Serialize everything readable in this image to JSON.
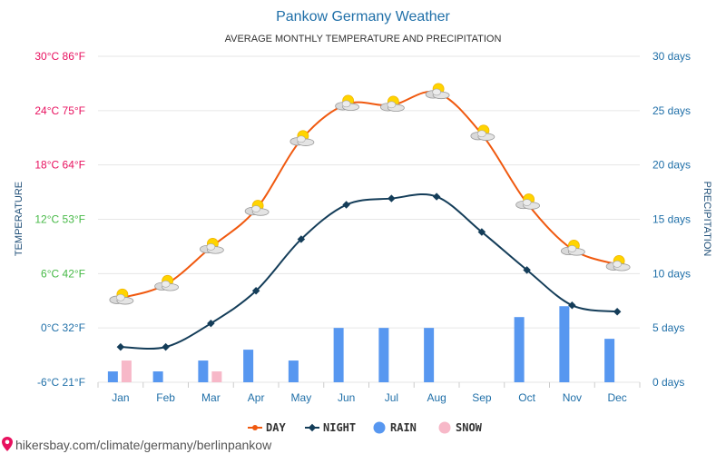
{
  "chart_data": {
    "type": "line",
    "title": "Pankow Germany Weather",
    "subtitle": "AVERAGE MONTHLY TEMPERATURE AND PRECIPITATION",
    "ylabel_left": "TEMPERATURE",
    "ylabel_right": "PRECIPITATION",
    "categories": [
      "Jan",
      "Feb",
      "Mar",
      "Apr",
      "May",
      "Jun",
      "Jul",
      "Aug",
      "Sep",
      "Oct",
      "Nov",
      "Dec"
    ],
    "left_axis": {
      "ylim": [
        -6,
        30
      ],
      "ticks": [
        {
          "value": 30,
          "label": "30°C 86°F",
          "color": "#e8115f"
        },
        {
          "value": 24,
          "label": "24°C 75°F",
          "color": "#e8115f"
        },
        {
          "value": 18,
          "label": "18°C 64°F",
          "color": "#e8115f"
        },
        {
          "value": 12,
          "label": "12°C 53°F",
          "color": "#46b946"
        },
        {
          "value": 6,
          "label": "6°C 42°F",
          "color": "#46b946"
        },
        {
          "value": 0,
          "label": "0°C 32°F",
          "color": "#1f6fa8"
        },
        {
          "value": -6,
          "label": "-6°C 21°F",
          "color": "#1f6fa8"
        }
      ]
    },
    "right_axis": {
      "ylim": [
        0,
        30
      ],
      "ticks": [
        {
          "value": 30,
          "label": "30 days"
        },
        {
          "value": 25,
          "label": "25 days"
        },
        {
          "value": 20,
          "label": "20 days"
        },
        {
          "value": 15,
          "label": "15 days"
        },
        {
          "value": 10,
          "label": "10 days"
        },
        {
          "value": 5,
          "label": "5 days"
        },
        {
          "value": 0,
          "label": "0 days"
        }
      ]
    },
    "series": [
      {
        "name": "DAY",
        "kind": "line",
        "axis": "left",
        "color": "#f0590f",
        "values": [
          3.3,
          4.8,
          8.9,
          13.1,
          20.8,
          24.7,
          24.6,
          26.0,
          21.4,
          13.8,
          8.7,
          7.0
        ]
      },
      {
        "name": "NIGHT",
        "kind": "line",
        "axis": "left",
        "color": "#143d59",
        "values": [
          -2.1,
          -2.1,
          0.5,
          4.1,
          9.8,
          13.6,
          14.3,
          14.5,
          10.6,
          6.4,
          2.5,
          1.8
        ]
      },
      {
        "name": "RAIN",
        "kind": "bar",
        "axis": "right",
        "color": "#5797f0",
        "values": [
          1,
          1,
          2,
          3,
          2,
          5,
          5,
          5,
          0,
          6,
          7,
          4
        ]
      },
      {
        "name": "SNOW",
        "kind": "bar",
        "axis": "right",
        "color": "#f7b8c8",
        "values": [
          2,
          0,
          1,
          0,
          0,
          0,
          0,
          0,
          0,
          0,
          0,
          0
        ]
      }
    ],
    "weather_icon": "partly-cloudy-icon",
    "grid": true,
    "legend_position": "bottom-center"
  },
  "footer": {
    "credit": "hikersbay.com/climate/germany/berlinpankow",
    "credit_icon": "map-pin-icon"
  }
}
